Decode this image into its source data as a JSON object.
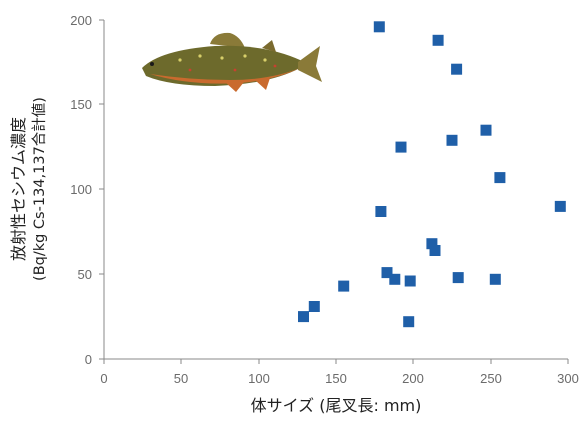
{
  "chart_data": {
    "type": "scatter",
    "xlabel": "体サイズ (尾叉長: mm)",
    "ylabel": "放射性セシウム濃度",
    "ylabel_sub": "(Bq/kg Cs-134,137合計値)",
    "xlim": [
      0,
      300
    ],
    "ylim": [
      0,
      200
    ],
    "x_ticks": [
      "0",
      "50",
      "100",
      "150",
      "200",
      "250",
      "300"
    ],
    "y_ticks": [
      "0",
      "50",
      "100",
      "150",
      "200"
    ],
    "grid": false,
    "marker_color": "#1f5fa8",
    "marker": "square",
    "illustration": "fish-illustration",
    "points": [
      {
        "x": 129,
        "y": 25
      },
      {
        "x": 136,
        "y": 31
      },
      {
        "x": 155,
        "y": 43
      },
      {
        "x": 178,
        "y": 196
      },
      {
        "x": 179,
        "y": 87
      },
      {
        "x": 183,
        "y": 51
      },
      {
        "x": 188,
        "y": 47
      },
      {
        "x": 192,
        "y": 125
      },
      {
        "x": 197,
        "y": 22
      },
      {
        "x": 198,
        "y": 46
      },
      {
        "x": 212,
        "y": 68
      },
      {
        "x": 214,
        "y": 64
      },
      {
        "x": 216,
        "y": 188
      },
      {
        "x": 225,
        "y": 129
      },
      {
        "x": 228,
        "y": 171
      },
      {
        "x": 229,
        "y": 48
      },
      {
        "x": 247,
        "y": 135
      },
      {
        "x": 253,
        "y": 47
      },
      {
        "x": 256,
        "y": 107
      },
      {
        "x": 295,
        "y": 90
      }
    ]
  }
}
